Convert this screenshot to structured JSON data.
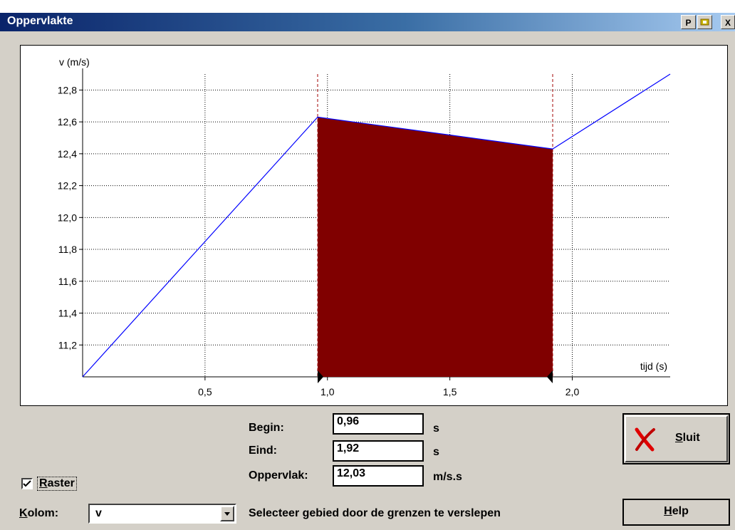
{
  "window": {
    "title": "Oppervlakte"
  },
  "titlebar_buttons": {
    "p": "P",
    "close": "X"
  },
  "chart_data": {
    "type": "area",
    "ylabel": "v (m/s)",
    "xlabel": "tijd (s)",
    "xlim": [
      0.0,
      2.4
    ],
    "ylim": [
      11.0,
      12.9
    ],
    "x_ticks": [
      "0,5",
      "1,0",
      "1,5",
      "2,0"
    ],
    "x_tick_values": [
      0.5,
      1.0,
      1.5,
      2.0
    ],
    "y_ticks": [
      "12,8",
      "12,6",
      "12,4",
      "12,2",
      "12,0",
      "11,8",
      "11,6",
      "11,4",
      "11,2"
    ],
    "y_tick_values": [
      12.8,
      12.6,
      12.4,
      12.2,
      12.0,
      11.8,
      11.6,
      11.4,
      11.2
    ],
    "grid": true,
    "series": [
      {
        "x": [
          0.0,
          0.96,
          1.92,
          2.4
        ],
        "values": [
          11.0,
          12.63,
          12.43,
          12.9
        ],
        "color": "#0000ff"
      }
    ],
    "shaded_region": {
      "from": 0.96,
      "to": 1.92,
      "color": "#800000"
    }
  },
  "form": {
    "begin_label": "Begin:",
    "begin_value": "0,96",
    "begin_unit": "s",
    "eind_label": "Eind:",
    "eind_value": "1,92",
    "eind_unit": "s",
    "oppervlak_label": "Oppervlak:",
    "oppervlak_value": "12,03",
    "oppervlak_unit": "m/s.s"
  },
  "raster": {
    "label_first": "R",
    "label_rest": "aster",
    "checked": true
  },
  "kolom": {
    "label_first": "K",
    "label_rest": "olom:",
    "value": "v"
  },
  "hint": "Selecteer gebied door de grenzen te verslepen",
  "buttons": {
    "sluit_first": "S",
    "sluit_rest": "luit",
    "help_first": "H",
    "help_rest": "elp"
  }
}
